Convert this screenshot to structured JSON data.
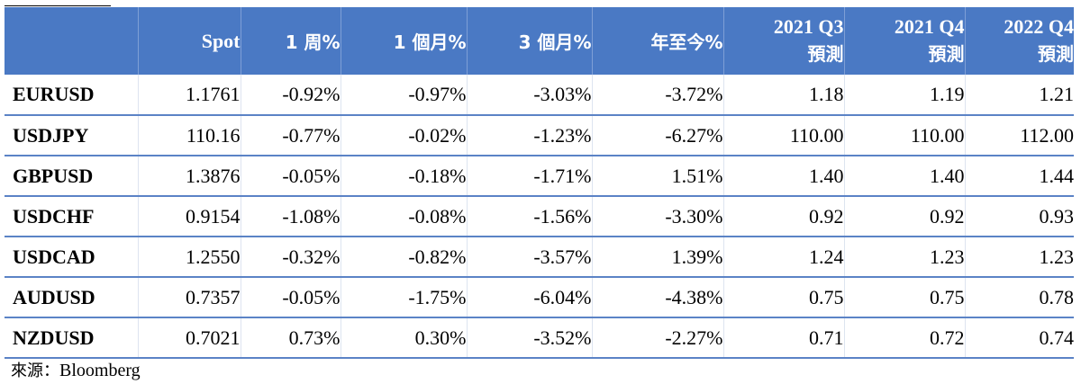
{
  "table": {
    "headers": [
      {
        "line1": "",
        "line2": ""
      },
      {
        "line1": "Spot",
        "line2": ""
      },
      {
        "line1": "1 周%",
        "line2": ""
      },
      {
        "line1": "1 個月%",
        "line2": ""
      },
      {
        "line1": "3 個月%",
        "line2": ""
      },
      {
        "line1": "年至今%",
        "line2": ""
      },
      {
        "line1": "2021 Q3",
        "line2": "預測"
      },
      {
        "line1": "2021 Q4",
        "line2": "預測"
      },
      {
        "line1": "2022 Q4",
        "line2": "預測"
      }
    ],
    "rows": [
      [
        "EURUSD",
        "1.1761",
        "-0.92%",
        "-0.97%",
        "-3.03%",
        "-3.72%",
        "1.18",
        "1.19",
        "1.21"
      ],
      [
        "USDJPY",
        "110.16",
        "-0.77%",
        "-0.02%",
        "-1.23%",
        "-6.27%",
        "110.00",
        "110.00",
        "112.00"
      ],
      [
        "GBPUSD",
        "1.3876",
        "-0.05%",
        "-0.18%",
        "-1.71%",
        "1.51%",
        "1.40",
        "1.40",
        "1.44"
      ],
      [
        "USDCHF",
        "0.9154",
        "-1.08%",
        "-0.08%",
        "-1.56%",
        "-3.30%",
        "0.92",
        "0.92",
        "0.93"
      ],
      [
        "USDCAD",
        "1.2550",
        "-0.32%",
        "-0.82%",
        "-3.57%",
        "1.39%",
        "1.24",
        "1.23",
        "1.23"
      ],
      [
        "AUDUSD",
        "0.7357",
        "-0.05%",
        "-1.75%",
        "-6.04%",
        "-4.38%",
        "0.75",
        "0.75",
        "0.78"
      ],
      [
        "NZDUSD",
        "0.7021",
        "0.73%",
        "0.30%",
        "-3.52%",
        "-2.27%",
        "0.71",
        "0.72",
        "0.74"
      ]
    ]
  },
  "source": {
    "label": "來源：",
    "value": "Bloomberg"
  },
  "colors": {
    "header_bg": "#4a79c4",
    "row_rule": "#5b83c6",
    "header_text": "#ffffff"
  }
}
